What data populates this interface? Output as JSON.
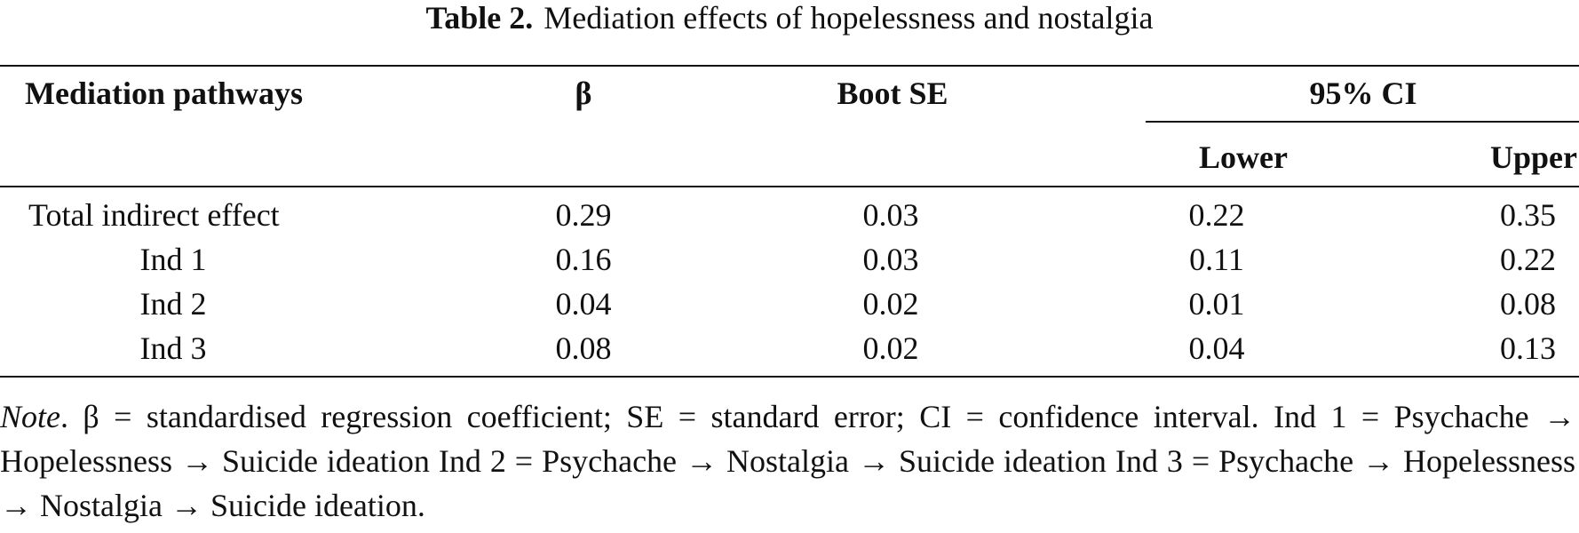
{
  "caption": {
    "label": "Table 2.",
    "title": "Mediation effects of hopelessness and nostalgia"
  },
  "table": {
    "headers": {
      "pathway": "Mediation pathways",
      "beta": "β",
      "boot_se": "Boot SE",
      "ci": "95% CI",
      "lower": "Lower",
      "upper": "Upper"
    },
    "rows": [
      {
        "pathway": "Total indirect effect",
        "beta": "0.29",
        "boot_se": "0.03",
        "lower": "0.22",
        "upper": "0.35"
      },
      {
        "pathway": "Ind 1",
        "beta": "0.16",
        "boot_se": "0.03",
        "lower": "0.11",
        "upper": "0.22"
      },
      {
        "pathway": "Ind 2",
        "beta": "0.04",
        "boot_se": "0.02",
        "lower": "0.01",
        "upper": "0.08"
      },
      {
        "pathway": "Ind 3",
        "beta": "0.08",
        "boot_se": "0.02",
        "lower": "0.04",
        "upper": "0.13"
      }
    ]
  },
  "note": {
    "label": "Note",
    "text": ". β = standardised regression coefficient; SE = standard error; CI = confidence interval. Ind 1 = Psychache → Hopelessness → Suicide ideation Ind 2 = Psychache → Nostalgia → Suicide ideation Ind 3 = Psychache → Hopelessness → Nostalgia → Suicide ideation."
  }
}
